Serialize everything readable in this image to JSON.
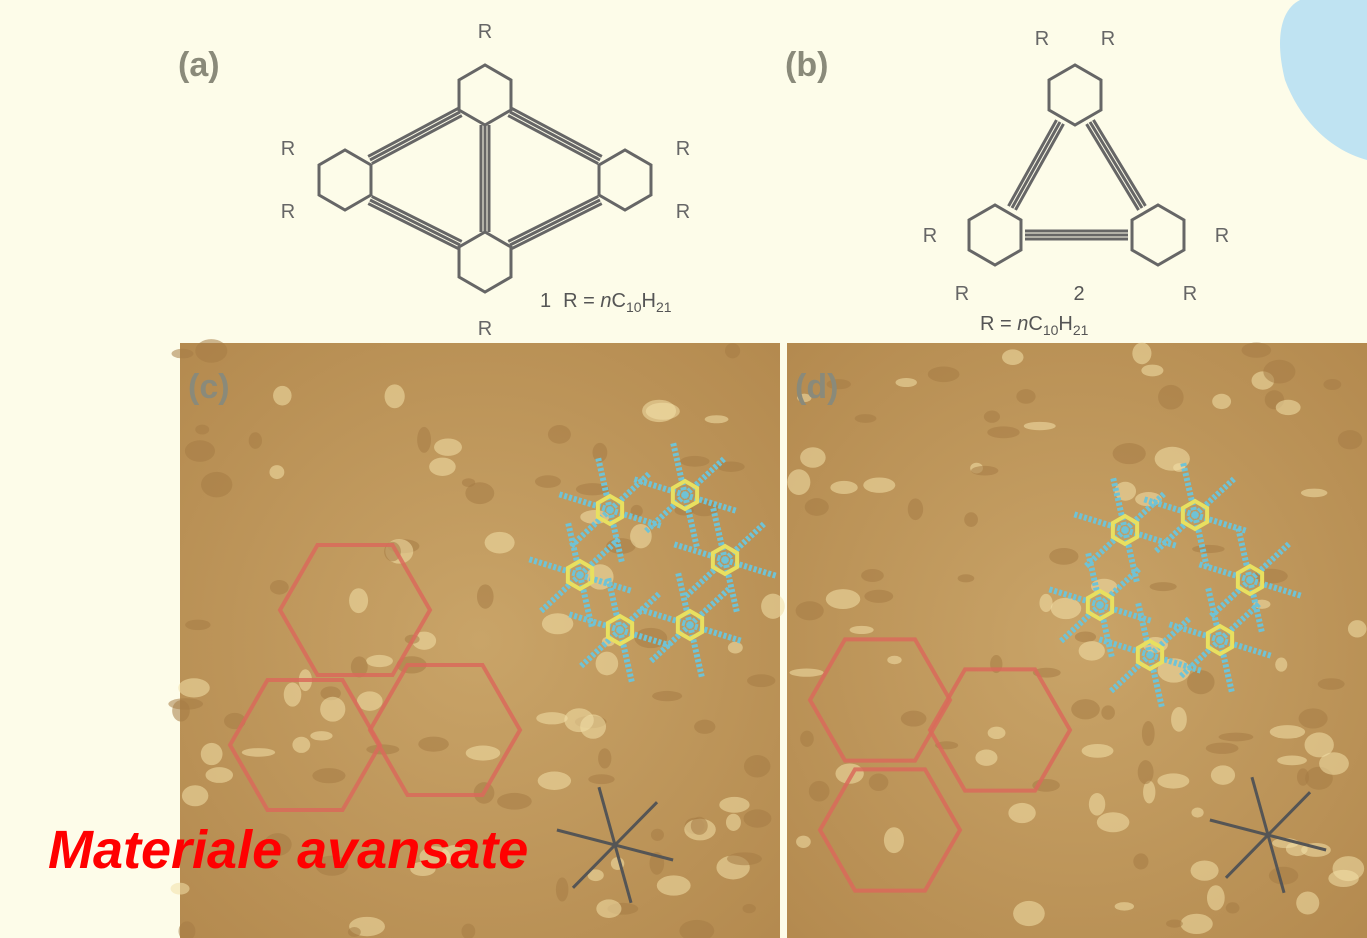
{
  "panels": {
    "a": {
      "label": "(a)",
      "substituent": "R",
      "compound": "1",
      "formula": {
        "main": [
          "R = ",
          "n",
          "C",
          "H"
        ],
        "sub": [
          "10",
          "21"
        ]
      }
    },
    "b": {
      "label": "(b)",
      "substituent": "R",
      "compound": "2",
      "formula": {
        "main": [
          "R = ",
          "n",
          "C",
          "H"
        ],
        "sub": [
          "10",
          "21"
        ]
      }
    },
    "c": {
      "label": "(c)"
    },
    "d": {
      "label": "(d)"
    }
  },
  "caption": "Materiale avansate"
}
